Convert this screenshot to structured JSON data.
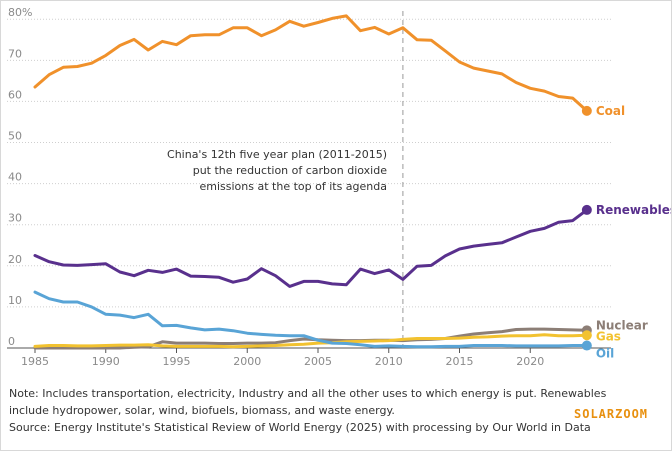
{
  "chart_data": {
    "type": "line",
    "x": [
      1985,
      1986,
      1987,
      1988,
      1989,
      1990,
      1991,
      1992,
      1993,
      1994,
      1995,
      1996,
      1997,
      1998,
      1999,
      2000,
      2001,
      2002,
      2003,
      2004,
      2005,
      2006,
      2007,
      2008,
      2009,
      2010,
      2011,
      2012,
      2013,
      2014,
      2015,
      2016,
      2017,
      2018,
      2019,
      2020,
      2021,
      2022,
      2023,
      2024
    ],
    "xticks": [
      1985,
      1990,
      1995,
      2000,
      2005,
      2010,
      2015,
      2020
    ],
    "yticks": [
      0,
      10,
      20,
      30,
      40,
      50,
      60,
      70,
      80
    ],
    "ytick_labels": [
      "0",
      "10",
      "20",
      "30",
      "40",
      "50",
      "60",
      "70",
      "80%"
    ],
    "ylim": [
      0,
      82
    ],
    "xlim": [
      1985,
      2025
    ],
    "grid": "horizontal dotted",
    "series": [
      {
        "name": "Coal",
        "color": "#f0912b",
        "values": [
          63.5,
          66.5,
          68.3,
          68.5,
          69.3,
          71.2,
          73.6,
          75.1,
          72.5,
          74.6,
          73.8,
          76.0,
          76.2,
          76.2,
          77.9,
          77.9,
          76.0,
          77.4,
          79.5,
          78.3,
          79.2,
          80.2,
          80.8,
          77.2,
          78.0,
          76.4,
          77.9,
          75.0,
          74.9,
          72.3,
          69.6,
          68.1,
          67.4,
          66.7,
          64.6,
          63.2,
          62.5,
          61.2,
          60.8,
          57.7
        ]
      },
      {
        "name": "Renewables",
        "color": "#59308d",
        "values": [
          22.5,
          21.0,
          20.2,
          20.1,
          20.3,
          20.5,
          18.5,
          17.6,
          18.9,
          18.4,
          19.2,
          17.5,
          17.4,
          17.2,
          16.0,
          16.8,
          19.3,
          17.6,
          15.0,
          16.2,
          16.2,
          15.6,
          15.4,
          19.2,
          18.1,
          19.0,
          16.7,
          19.9,
          20.1,
          22.4,
          24.1,
          24.8,
          25.2,
          25.6,
          27.0,
          28.4,
          29.1,
          30.6,
          31.0,
          33.6
        ]
      },
      {
        "name": "Nuclear",
        "color": "#8c7e76",
        "values": [
          0,
          0,
          0,
          0,
          0,
          0,
          0,
          0.2,
          0.3,
          1.5,
          1.2,
          1.2,
          1.2,
          1.1,
          1.1,
          1.2,
          1.2,
          1.3,
          1.8,
          2.2,
          2.0,
          1.9,
          1.8,
          1.8,
          1.9,
          1.9,
          1.8,
          2.0,
          2.1,
          2.3,
          2.9,
          3.4,
          3.7,
          4.0,
          4.5,
          4.6,
          4.6,
          4.5,
          4.4,
          4.3
        ]
      },
      {
        "name": "Gas",
        "color": "#f2c230",
        "values": [
          0.4,
          0.6,
          0.6,
          0.5,
          0.5,
          0.6,
          0.7,
          0.7,
          0.8,
          0.5,
          0.4,
          0.4,
          0.4,
          0.4,
          0.3,
          0.4,
          0.5,
          0.6,
          0.8,
          0.9,
          1.2,
          1.3,
          1.5,
          1.6,
          1.7,
          1.8,
          2.1,
          2.3,
          2.3,
          2.3,
          2.4,
          2.6,
          2.7,
          2.9,
          3.0,
          3.0,
          3.2,
          3.0,
          3.0,
          3.1
        ]
      },
      {
        "name": "Oil",
        "color": "#59a4d6",
        "values": [
          13.6,
          12.0,
          11.2,
          11.2,
          10.0,
          8.2,
          8.0,
          7.4,
          8.2,
          5.4,
          5.5,
          4.9,
          4.4,
          4.6,
          4.2,
          3.6,
          3.3,
          3.1,
          3.0,
          3.0,
          1.9,
          1.2,
          1.1,
          0.8,
          0.4,
          0.5,
          0.4,
          0.3,
          0.3,
          0.4,
          0.4,
          0.6,
          0.6,
          0.6,
          0.5,
          0.5,
          0.5,
          0.5,
          0.6,
          0.6
        ]
      }
    ],
    "reference_line": {
      "x": 2011
    },
    "annotation": [
      "China's 12th five year plan (2011-2015)",
      "put the reduction of carbon dioxide",
      "emissions at the top of its agenda"
    ],
    "legend": "end-of-line labels"
  },
  "note": {
    "line1": "Note: Includes transportation, electricity, Industry and all the other uses to which energy is put. Renewables",
    "line2": "include hydropower, solar, wind, biofuels, biomass, and waste energy.",
    "source": "Source: Energy Institute's Statistical Review of World Energy (2025) with processing by Our World in Data"
  },
  "watermark": "SOLARZOOM"
}
